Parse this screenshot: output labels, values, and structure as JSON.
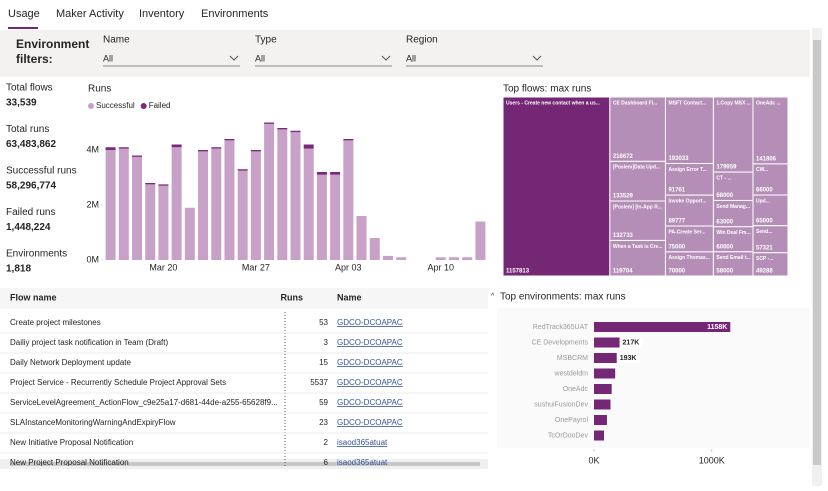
{
  "tabs": [
    "Usage",
    "Maker Activity",
    "Inventory",
    "Environments"
  ],
  "filters": {
    "label": "Environment filters:",
    "fields": [
      {
        "name": "Name",
        "value": "All"
      },
      {
        "name": "Type",
        "value": "All"
      },
      {
        "name": "Region",
        "value": "All"
      }
    ]
  },
  "kpis": [
    {
      "label": "Total flows",
      "value": "33,539"
    },
    {
      "label": "Total runs",
      "value": "63,483,862"
    },
    {
      "label": "Successful runs",
      "value": "58,296,774"
    },
    {
      "label": "Failed runs",
      "value": "1,448,224"
    },
    {
      "label": "Environments",
      "value": "1,818"
    }
  ],
  "chart_data": [
    {
      "type": "bar",
      "stacked": true,
      "title": "Runs",
      "categories": [
        null,
        null,
        null,
        null,
        "Mar 20",
        null,
        null,
        null,
        null,
        null,
        null,
        "Mar 27",
        null,
        null,
        null,
        null,
        null,
        null,
        "Apr 03",
        null,
        null,
        null,
        null,
        null,
        null,
        "Apr 10",
        null,
        null,
        null
      ],
      "series": [
        {
          "name": "Successful",
          "color": "#c7a1c8",
          "values": [
            4000000,
            4050000,
            3750000,
            2750000,
            2700000,
            4100000,
            1900000,
            3950000,
            4050000,
            4350000,
            3250000,
            3950000,
            4950000,
            4750000,
            4650000,
            4050000,
            3100000,
            3100000,
            4350000,
            1600000,
            800000,
            150000,
            100000,
            0,
            0,
            100000,
            100000,
            100000,
            1400000
          ]
        },
        {
          "name": "Failed",
          "color": "#7b2a7b",
          "values": [
            100000,
            50000,
            50000,
            50000,
            50000,
            100000,
            0,
            50000,
            50000,
            50000,
            50000,
            50000,
            50000,
            50000,
            50000,
            150000,
            100000,
            100000,
            50000,
            0,
            0,
            0,
            0,
            0,
            0,
            0,
            0,
            0,
            0
          ]
        }
      ],
      "ylim": [
        0,
        6000000
      ],
      "yticks": [
        {
          "value": 0,
          "label": "0M"
        },
        {
          "value": 2000000,
          "label": "2M"
        },
        {
          "value": 4000000,
          "label": "4M"
        }
      ],
      "grid": false,
      "legend": "top-left"
    },
    {
      "type": "treemap",
      "title": "Top flows: max runs",
      "categories": [
        "Users - Create new contact when a us...",
        "CE Dashboard Fl...",
        "MSFT Contact...",
        "1.Copy MSX ...",
        "OneAdc ...",
        "[Poslem]Data Upd...",
        "[Poslem] [In-App R...",
        "When a Task is Cre...",
        "Assign Error T...",
        "Invoke Opport...",
        "PA-Create Ser...",
        "Assign Thomas...",
        "CT - ...",
        "CW...",
        "Upd...",
        "Send Manag...",
        "Win Deal Fm...",
        "Send Email t...",
        "Send...",
        "SCP -..."
      ],
      "values": [
        1157813,
        216672,
        193033,
        179959,
        141806,
        133529,
        132733,
        119704,
        91761,
        89777,
        75000,
        70000,
        68000,
        66000,
        65000,
        63000,
        60000,
        58000,
        57321,
        49288
      ],
      "color": "#b58eb7",
      "highlight_color": "#742774"
    },
    {
      "type": "hbar",
      "title": "Top environments: max runs",
      "categories": [
        "RedTrack365UAT",
        "CE Developments",
        "MSBCRM",
        "westdeldm",
        "OneAdc",
        "sushuiFusionDev",
        "OnePayrol",
        "TcOrDooDev"
      ],
      "values": [
        1158000,
        217000,
        193000,
        180000,
        150000,
        140000,
        110000,
        85000
      ],
      "value_labels": [
        "1158K",
        "217K",
        "193K",
        null,
        null,
        null,
        null,
        null
      ],
      "color": "#742774",
      "xlim": [
        0,
        1750000
      ],
      "xticks": [
        {
          "value": 0,
          "label": "0K"
        },
        {
          "value": 1000000,
          "label": "1000K"
        }
      ]
    }
  ],
  "table": {
    "columns": [
      "Flow name",
      "Runs",
      "Name"
    ],
    "rows": [
      [
        "Create project milestones",
        "53",
        "GDCO-DCOAPAC"
      ],
      [
        "Dailiy project task notification in Team (Draft)",
        "3",
        "GDCO-DCOAPAC"
      ],
      [
        "Daily Network Deployment update",
        "15",
        "GDCO-DCOAPAC"
      ],
      [
        "Project Service - Recurrently Schedule Project Approval Sets",
        "5537",
        "GDCO-DCOAPAC"
      ],
      [
        "ServiceLevelAgreement_ActionFlow_c9e25a17-d681-44de-a255-65628f9...",
        "59",
        "GDCO-DCOAPAC"
      ],
      [
        "SLAInstanceMonitoringWarningAndExpiryFlow",
        "23",
        "GDCO-DCOAPAC"
      ],
      [
        "New Initiative Proposal Notification",
        "2",
        "isaod365atuat"
      ],
      [
        "New Project Proposal Notification",
        "6",
        "isaod365atuat"
      ]
    ]
  }
}
